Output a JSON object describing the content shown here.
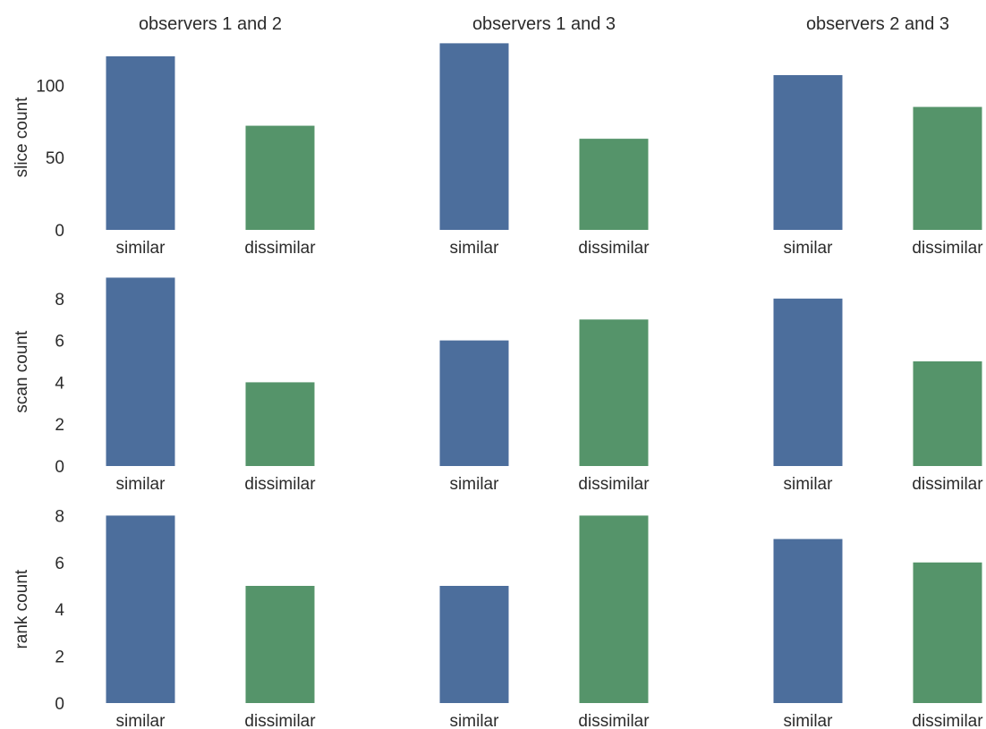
{
  "chart_data": {
    "type": "bar",
    "layout": "3x3 grid of bar charts",
    "grid": false,
    "legend": "none",
    "categories": [
      "similar",
      "dissimilar"
    ],
    "colors": {
      "similar": "#4c6e9c",
      "dissimilar": "#55946a"
    },
    "column_titles": [
      "observers 1 and 2",
      "observers 1 and 3",
      "observers 2 and 3"
    ],
    "rows": [
      {
        "ylabel": "slice count",
        "ylim": [
          0,
          128
        ],
        "yticks": [
          0,
          50,
          100
        ],
        "values": [
          [
            120,
            72
          ],
          [
            129,
            63
          ],
          [
            107,
            85
          ]
        ]
      },
      {
        "ylabel": "scan count",
        "ylim": [
          0,
          9
        ],
        "yticks": [
          0,
          2,
          4,
          6,
          8
        ],
        "values": [
          [
            9,
            4
          ],
          [
            6,
            7
          ],
          [
            8,
            5
          ]
        ]
      },
      {
        "ylabel": "rank count",
        "ylim": [
          0,
          8
        ],
        "yticks": [
          0,
          2,
          4,
          6,
          8
        ],
        "values": [
          [
            8,
            5
          ],
          [
            5,
            8
          ],
          [
            7,
            6
          ]
        ]
      }
    ]
  }
}
